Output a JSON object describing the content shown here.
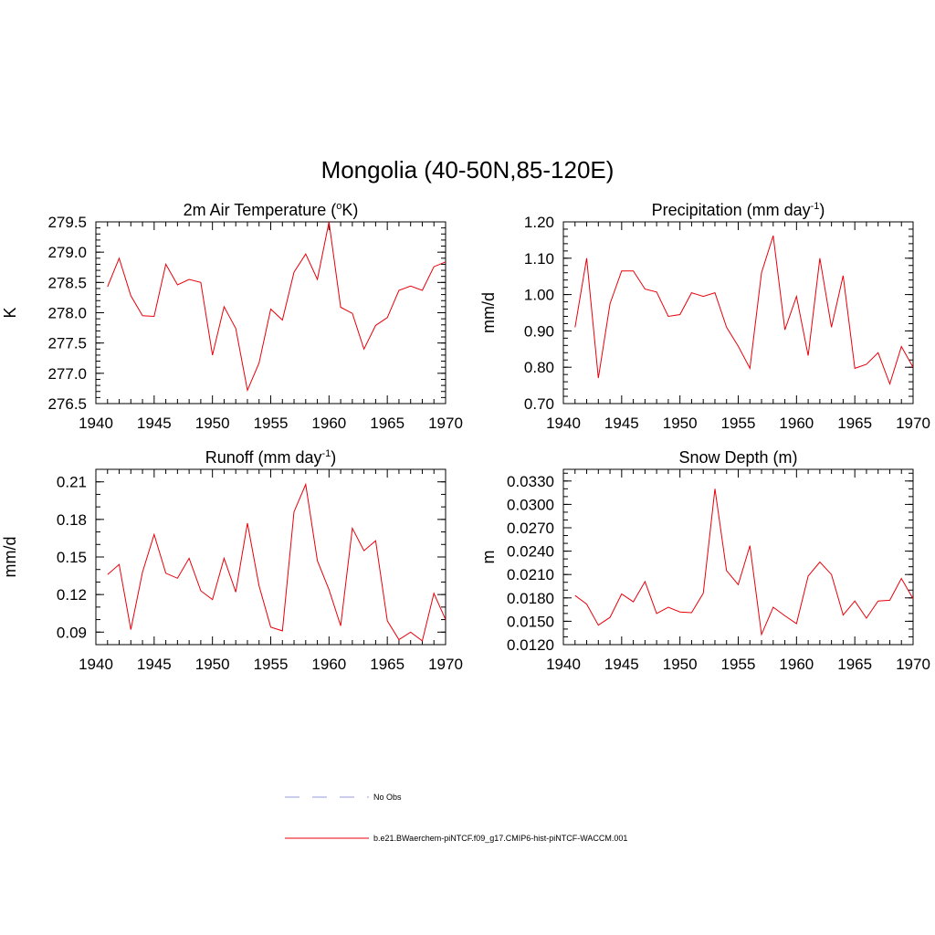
{
  "figure": {
    "title": "Mongolia (40-50N,85-120E)",
    "line_color": "#e8000b",
    "obs_color": "#9999dd"
  },
  "legend": {
    "items": [
      {
        "label": "No Obs",
        "style": "dashed",
        "color": "#9999dd"
      },
      {
        "label": "b.e21.BWaerchem-piNTCF.f09_g17.CMIP6-hist-piNTCF-WACCM.001",
        "style": "solid",
        "color": "#e8000b"
      }
    ]
  },
  "chart_data": [
    {
      "type": "line",
      "title": "2m Air Temperature (",
      "title_sup": "o",
      "title_after": "K)",
      "ylabel": "K",
      "xlim": [
        1940,
        1970
      ],
      "ylim": [
        276.5,
        279.5
      ],
      "xticks": [
        1940,
        1945,
        1950,
        1955,
        1960,
        1965,
        1970
      ],
      "xtick_labels": [
        "1940",
        "1945",
        "1950",
        "1955",
        "1960",
        "1965",
        "1970"
      ],
      "yticks": [
        276.5,
        277.0,
        277.5,
        278.0,
        278.5,
        279.0,
        279.5
      ],
      "ytick_labels": [
        "276.5",
        "277.0",
        "277.5",
        "278.0",
        "278.5",
        "279.0",
        "279.5"
      ],
      "yminor": 5,
      "x": [
        1941,
        1942,
        1943,
        1944,
        1945,
        1946,
        1947,
        1948,
        1949,
        1950,
        1951,
        1952,
        1953,
        1954,
        1955,
        1956,
        1957,
        1958,
        1959,
        1960,
        1961,
        1962,
        1963,
        1964,
        1965,
        1966,
        1967,
        1968,
        1969,
        1970
      ],
      "values": [
        278.43,
        278.9,
        278.28,
        277.95,
        277.94,
        278.8,
        278.46,
        278.55,
        278.5,
        277.3,
        278.1,
        277.74,
        276.72,
        277.17,
        278.06,
        277.88,
        278.67,
        278.97,
        278.55,
        279.5,
        278.09,
        277.99,
        277.4,
        277.79,
        277.92,
        278.37,
        278.44,
        278.37,
        278.76,
        278.84
      ]
    },
    {
      "type": "line",
      "title": "Precipitation (mm day",
      "title_sup": "-1",
      "title_after": ")",
      "ylabel": "mm/d",
      "xlim": [
        1940,
        1970
      ],
      "ylim": [
        0.7,
        1.2
      ],
      "xticks": [
        1940,
        1945,
        1950,
        1955,
        1960,
        1965,
        1970
      ],
      "xtick_labels": [
        "1940",
        "1945",
        "1950",
        "1955",
        "1960",
        "1965",
        "1970"
      ],
      "yticks": [
        0.7,
        0.8,
        0.9,
        1.0,
        1.1,
        1.2
      ],
      "ytick_labels": [
        "0.70",
        "0.80",
        "0.90",
        "1.00",
        "1.10",
        "1.20"
      ],
      "yminor": 5,
      "x": [
        1941,
        1942,
        1943,
        1944,
        1945,
        1946,
        1947,
        1948,
        1949,
        1950,
        1951,
        1952,
        1953,
        1954,
        1955,
        1956,
        1957,
        1958,
        1959,
        1960,
        1961,
        1962,
        1963,
        1964,
        1965,
        1966,
        1967,
        1968,
        1969,
        1970
      ],
      "values": [
        0.91,
        1.1,
        0.77,
        0.975,
        1.065,
        1.065,
        1.015,
        1.007,
        0.94,
        0.945,
        1.005,
        0.995,
        1.005,
        0.91,
        0.858,
        0.797,
        1.06,
        1.162,
        0.903,
        0.995,
        0.832,
        1.1,
        0.91,
        1.052,
        0.797,
        0.808,
        0.84,
        0.754,
        0.857,
        0.8
      ]
    },
    {
      "type": "line",
      "title": "Runoff (mm day",
      "title_sup": "-1",
      "title_after": ")",
      "ylabel": "mm/d",
      "xlim": [
        1940,
        1970
      ],
      "ylim": [
        0.08,
        0.22
      ],
      "xticks": [
        1940,
        1945,
        1950,
        1955,
        1960,
        1965,
        1970
      ],
      "xtick_labels": [
        "1940",
        "1945",
        "1950",
        "1955",
        "1960",
        "1965",
        "1970"
      ],
      "yticks": [
        0.09,
        0.12,
        0.15,
        0.18,
        0.21
      ],
      "ytick_labels": [
        "0.09",
        "0.12",
        "0.15",
        "0.18",
        "0.21"
      ],
      "yminor": 3,
      "x": [
        1941,
        1942,
        1943,
        1944,
        1945,
        1946,
        1947,
        1948,
        1949,
        1950,
        1951,
        1952,
        1953,
        1954,
        1955,
        1956,
        1957,
        1958,
        1959,
        1960,
        1961,
        1962,
        1963,
        1964,
        1965,
        1966,
        1967,
        1968,
        1969,
        1970
      ],
      "values": [
        0.136,
        0.144,
        0.092,
        0.138,
        0.168,
        0.137,
        0.133,
        0.149,
        0.123,
        0.116,
        0.149,
        0.122,
        0.177,
        0.127,
        0.094,
        0.091,
        0.186,
        0.208,
        0.147,
        0.124,
        0.095,
        0.173,
        0.155,
        0.163,
        0.099,
        0.084,
        0.09,
        0.083,
        0.121,
        0.1
      ]
    },
    {
      "type": "line",
      "title": "Snow Depth (m)",
      "title_sup": "",
      "title_after": "",
      "ylabel": "m",
      "xlim": [
        1940,
        1970
      ],
      "ylim": [
        0.012,
        0.0345
      ],
      "xticks": [
        1940,
        1945,
        1950,
        1955,
        1960,
        1965,
        1970
      ],
      "xtick_labels": [
        "1940",
        "1945",
        "1950",
        "1955",
        "1960",
        "1965",
        "1970"
      ],
      "yticks": [
        0.012,
        0.015,
        0.018,
        0.021,
        0.024,
        0.027,
        0.03,
        0.033
      ],
      "ytick_labels": [
        "0.0120",
        "0.0150",
        "0.0180",
        "0.0210",
        "0.0240",
        "0.0270",
        "0.0300",
        "0.0330"
      ],
      "yminor": 3,
      "x": [
        1941,
        1942,
        1943,
        1944,
        1945,
        1946,
        1947,
        1948,
        1949,
        1950,
        1951,
        1952,
        1953,
        1954,
        1955,
        1956,
        1957,
        1958,
        1959,
        1960,
        1961,
        1962,
        1963,
        1964,
        1965,
        1966,
        1967,
        1968,
        1969,
        1970
      ],
      "values": [
        0.0183,
        0.0172,
        0.0145,
        0.0155,
        0.0185,
        0.0175,
        0.0201,
        0.016,
        0.0168,
        0.0162,
        0.0161,
        0.0186,
        0.032,
        0.0215,
        0.0197,
        0.0247,
        0.0133,
        0.0168,
        0.0157,
        0.0147,
        0.0208,
        0.0226,
        0.021,
        0.0158,
        0.0176,
        0.0154,
        0.0176,
        0.0177,
        0.0205,
        0.0179
      ]
    }
  ]
}
